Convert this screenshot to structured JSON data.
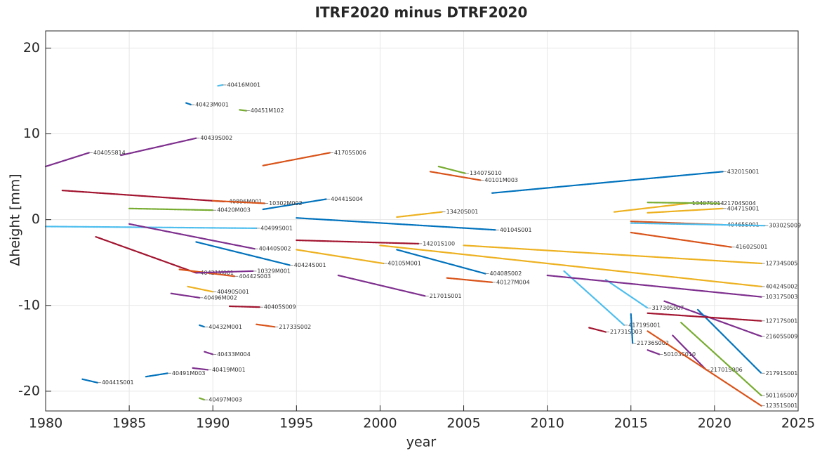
{
  "chart_data": {
    "type": "line",
    "title": "ITRF2020 minus DTRF2020",
    "xlabel": "year",
    "ylabel": "Δheight [mm]",
    "xlim": [
      1980,
      2025
    ],
    "xticks": [
      1980,
      1985,
      1990,
      1995,
      2000,
      2005,
      2010,
      2015,
      2020,
      2025
    ],
    "ylim": [
      -22.3,
      22
    ],
    "yticks": [
      -20,
      -10,
      0,
      10,
      20
    ],
    "grid": true,
    "series": [
      {
        "name": "40416M001",
        "color": "#4DBEEE",
        "x": [
          1990.3,
          1990.6
        ],
        "values": [
          15.6,
          15.7
        ]
      },
      {
        "name": "40423M001",
        "color": "#0072BD",
        "x": [
          1988.4,
          1988.7
        ],
        "values": [
          13.6,
          13.4
        ]
      },
      {
        "name": "40451M102",
        "color": "#77AC30",
        "x": [
          1991.6,
          1992.0
        ],
        "values": [
          12.8,
          12.7
        ]
      },
      {
        "name": "40439S002",
        "color": "#7E2F8E",
        "x": [
          1984.5,
          1989.0
        ],
        "values": [
          7.5,
          9.5
        ]
      },
      {
        "name": "40405S814",
        "color": "#7E2F8E",
        "x": [
          1980.0,
          1982.6
        ],
        "values": [
          6.2,
          7.8
        ]
      },
      {
        "name": "41705S006",
        "color": "#D95319",
        "x": [
          1993.0,
          1997.0
        ],
        "values": [
          6.3,
          7.8
        ]
      },
      {
        "name": "43201S001",
        "color": "#0072BD",
        "x": [
          2006.7,
          2020.5
        ],
        "values": [
          3.1,
          5.6
        ]
      },
      {
        "name": "13407S010",
        "color": "#77AC30",
        "x": [
          2003.5,
          2005.1
        ],
        "values": [
          6.2,
          5.4
        ]
      },
      {
        "name": "40101M003",
        "color": "#D95319",
        "x": [
          2003.0,
          2006.0
        ],
        "values": [
          5.6,
          4.6
        ]
      },
      {
        "name": "40441S004",
        "color": "#0072BD",
        "x": [
          1993.0,
          1996.8
        ],
        "values": [
          1.2,
          2.4
        ]
      },
      {
        "name": "40896M001",
        "color": "#A2142F",
        "x": [
          1981.0,
          1990.7
        ],
        "values": [
          3.4,
          2.1
        ]
      },
      {
        "name": "10302M002",
        "color": "#D95319",
        "x": [
          1990.0,
          1993.1
        ],
        "values": [
          2.2,
          1.9
        ]
      },
      {
        "name": "40420M003",
        "color": "#77AC30",
        "x": [
          1985.0,
          1990.0
        ],
        "values": [
          1.3,
          1.1
        ]
      },
      {
        "name": "13420S001",
        "color": "#EDB120",
        "x": [
          2001.0,
          2003.7
        ],
        "values": [
          0.3,
          0.9
        ]
      },
      {
        "name": "40499S001",
        "color": "#4DBEEE",
        "x": [
          1980.0,
          1992.6
        ],
        "values": [
          -0.8,
          -1.0
        ]
      },
      {
        "name": "40104S001",
        "color": "#0072BD",
        "x": [
          1995.0,
          2006.9
        ],
        "values": [
          0.2,
          -1.2
        ]
      },
      {
        "name": "13407S014",
        "color": "#EDB120",
        "x": [
          2014.0,
          2018.4
        ],
        "values": [
          0.9,
          1.9
        ]
      },
      {
        "name": "21704S004",
        "color": "#77AC30",
        "x": [
          2016.0,
          2020.3
        ],
        "values": [
          2.0,
          1.9
        ]
      },
      {
        "name": "40471S001",
        "color": "#EDB120",
        "x": [
          2016.0,
          2020.5
        ],
        "values": [
          0.8,
          1.3
        ]
      },
      {
        "name": "40465S001",
        "color": "#D95319",
        "x": [
          2015.0,
          2020.5
        ],
        "values": [
          -0.2,
          -0.6
        ]
      },
      {
        "name": "30302S009",
        "color": "#4DBEEE",
        "x": [
          2015.0,
          2023.0
        ],
        "values": [
          -0.4,
          -0.7
        ]
      },
      {
        "name": "40440S002",
        "color": "#7E2F8E",
        "x": [
          1985.0,
          1992.5
        ],
        "values": [
          -0.5,
          -3.4
        ]
      },
      {
        "name": "40424S001",
        "color": "#0072BD",
        "x": [
          1989.0,
          1994.6
        ],
        "values": [
          -2.6,
          -5.3
        ]
      },
      {
        "name": "40105M001",
        "color": "#EDB120",
        "x": [
          1995.0,
          2000.2
        ],
        "values": [
          -3.5,
          -5.1
        ]
      },
      {
        "name": "14201S100",
        "color": "#A2142F",
        "x": [
          1995.0,
          2002.3
        ],
        "values": [
          -2.4,
          -2.8
        ]
      },
      {
        "name": "40421M001",
        "color": "#A2142F",
        "x": [
          1983.0,
          1989.0
        ],
        "values": [
          -2.0,
          -6.2
        ]
      },
      {
        "name": "40442S003",
        "color": "#D95319",
        "x": [
          1988.0,
          1991.3
        ],
        "values": [
          -5.8,
          -6.6
        ]
      },
      {
        "name": "10329M001",
        "color": "#7E2F8E",
        "x": [
          1989.0,
          1992.4
        ],
        "values": [
          -6.2,
          -6.0
        ]
      },
      {
        "name": "40408S002",
        "color": "#0072BD",
        "x": [
          2001.0,
          2006.3
        ],
        "values": [
          -3.5,
          -6.3
        ]
      },
      {
        "name": "40127M004",
        "color": "#D95319",
        "x": [
          2004.0,
          2006.7
        ],
        "values": [
          -6.8,
          -7.3
        ]
      },
      {
        "name": "40490S001",
        "color": "#EDB120",
        "x": [
          1988.5,
          1990.0
        ],
        "values": [
          -7.8,
          -8.4
        ]
      },
      {
        "name": "40496M002",
        "color": "#7E2F8E",
        "x": [
          1987.5,
          1989.2
        ],
        "values": [
          -8.6,
          -9.1
        ]
      },
      {
        "name": "40405S009",
        "color": "#A2142F",
        "x": [
          1991.0,
          1992.8
        ],
        "values": [
          -10.1,
          -10.2
        ]
      },
      {
        "name": "21701S001",
        "color": "#7E2F8E",
        "x": [
          1997.5,
          2002.7
        ],
        "values": [
          -6.5,
          -8.9
        ]
      },
      {
        "name": "40432M001",
        "color": "#0072BD",
        "x": [
          1989.2,
          1989.5
        ],
        "values": [
          -12.3,
          -12.5
        ]
      },
      {
        "name": "21733S002",
        "color": "#D95319",
        "x": [
          1992.6,
          1993.7
        ],
        "values": [
          -12.2,
          -12.5
        ]
      },
      {
        "name": "40433M004",
        "color": "#7E2F8E",
        "x": [
          1989.5,
          1990.0
        ],
        "values": [
          -15.4,
          -15.7
        ]
      },
      {
        "name": "40491M003",
        "color": "#0072BD",
        "x": [
          1986.0,
          1987.3
        ],
        "values": [
          -18.3,
          -17.9
        ]
      },
      {
        "name": "40419M001",
        "color": "#7E2F8E",
        "x": [
          1988.8,
          1989.7
        ],
        "values": [
          -17.3,
          -17.5
        ]
      },
      {
        "name": "40441S001",
        "color": "#0072BD",
        "x": [
          1982.2,
          1983.1
        ],
        "values": [
          -18.6,
          -19.0
        ]
      },
      {
        "name": "40497M003",
        "color": "#77AC30",
        "x": [
          1989.2,
          1989.5
        ],
        "values": [
          -20.8,
          -21.0
        ]
      },
      {
        "name": "41719S001",
        "color": "#4DBEEE",
        "x": [
          2011.0,
          2014.6
        ],
        "values": [
          -6.0,
          -12.3
        ]
      },
      {
        "name": "21731S003",
        "color": "#A2142F",
        "x": [
          2012.5,
          2013.5
        ],
        "values": [
          -12.6,
          -13.1
        ]
      },
      {
        "name": "21736S002",
        "color": "#0072BD",
        "x": [
          2015.0,
          2015.1
        ],
        "values": [
          -11.0,
          -14.4
        ]
      },
      {
        "name": "50103S010",
        "color": "#7E2F8E",
        "x": [
          2016.0,
          2016.7
        ],
        "values": [
          -15.2,
          -15.7
        ]
      },
      {
        "name": "21701S006",
        "color": "#7E2F8E",
        "x": [
          2017.5,
          2019.5
        ],
        "values": [
          -13.5,
          -17.5
        ]
      },
      {
        "name": "31730S007",
        "color": "#4DBEEE",
        "x": [
          2013.5,
          2016.0
        ],
        "values": [
          -7.0,
          -10.3
        ]
      },
      {
        "name": "21605S009",
        "color": "#7E2F8E",
        "x": [
          2017.0,
          2022.8
        ],
        "values": [
          -9.5,
          -13.6
        ]
      },
      {
        "name": "21791S001",
        "color": "#0072BD",
        "x": [
          2019.0,
          2022.8
        ],
        "values": [
          -10.5,
          -17.9
        ]
      },
      {
        "name": "12717S001",
        "color": "#A2142F",
        "x": [
          2016.0,
          2022.8
        ],
        "values": [
          -10.9,
          -11.8
        ]
      },
      {
        "name": "50116S007",
        "color": "#77AC30",
        "x": [
          2018.0,
          2022.8
        ],
        "values": [
          -12.0,
          -20.5
        ]
      },
      {
        "name": "12351S001",
        "color": "#D95319",
        "x": [
          2016.0,
          2022.8
        ],
        "values": [
          -13.0,
          -21.7
        ]
      },
      {
        "name": "41602S001",
        "color": "#D95319",
        "x": [
          2015.0,
          2021.0
        ],
        "values": [
          -1.5,
          -3.2
        ]
      },
      {
        "name": "12734S005",
        "color": "#EDB120",
        "x": [
          2005.0,
          2022.8
        ],
        "values": [
          -3.0,
          -5.1
        ]
      },
      {
        "name": "40424S002",
        "color": "#EDB120",
        "x": [
          2000.0,
          2022.8
        ],
        "values": [
          -3.0,
          -7.8
        ]
      },
      {
        "name": "10317S003",
        "color": "#7E2F8E",
        "x": [
          2010.0,
          2022.8
        ],
        "values": [
          -6.5,
          -9.0
        ]
      }
    ]
  }
}
